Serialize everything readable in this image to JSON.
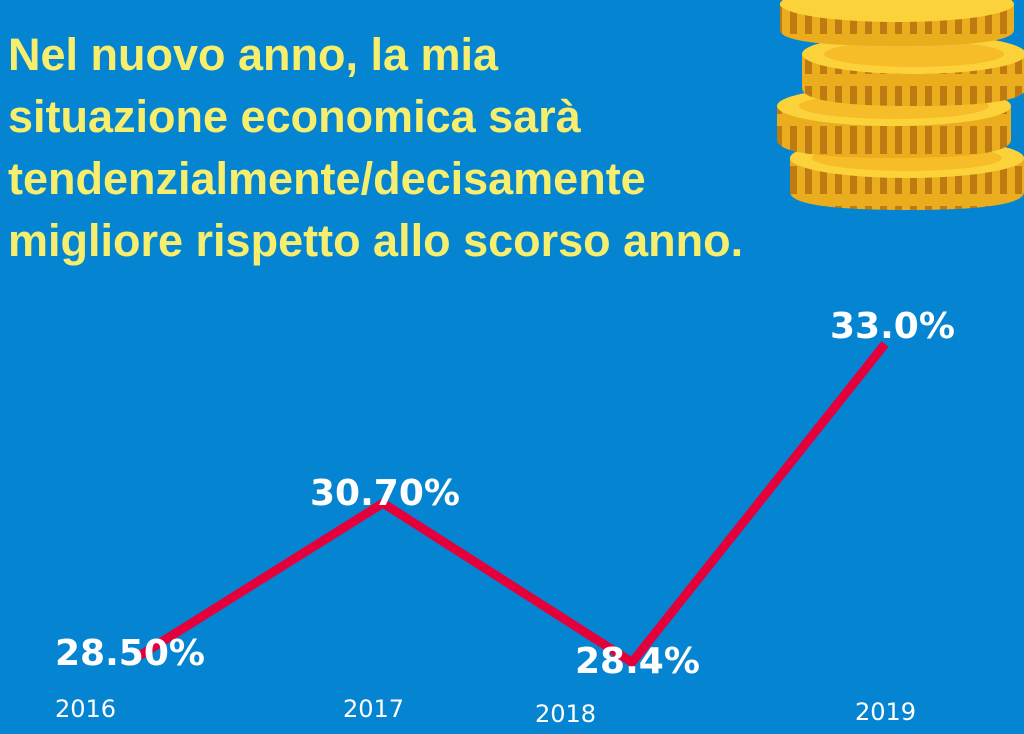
{
  "headline": {
    "lines": [
      "Nel nuovo anno, la mia",
      "situazione economica sarà",
      "tendenzialmente/decisamente",
      "migliore rispetto allo scorso anno."
    ]
  },
  "colors": {
    "background": "#0585d1",
    "headline": "#f8ee6d",
    "line": "#e4003b",
    "labels": "#ffffff"
  },
  "decoration": {
    "icon": "coin-stack-icon"
  },
  "chart_data": {
    "type": "line",
    "x": [
      "2016",
      "2017",
      "2018",
      "2019"
    ],
    "values": [
      28.5,
      30.7,
      28.4,
      33.0
    ],
    "data_labels": [
      "28.50%",
      "30.70%",
      "28.4%",
      "33.0%"
    ],
    "ylim": [
      28.0,
      33.0
    ],
    "grid": false,
    "legend": "none"
  }
}
